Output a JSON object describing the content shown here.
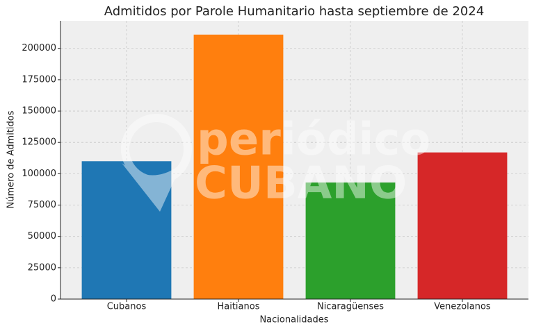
{
  "chart_data": {
    "type": "bar",
    "title": "Admitidos por Parole Humanitario hasta septiembre de 2024",
    "x_label": "Nacionalidades",
    "y_label": "Número de Admitidos",
    "categories": [
      "Cubanos",
      "Haitianos",
      "Nicaragüenses",
      "Venezolanos"
    ],
    "values": [
      110000,
      211000,
      93000,
      117000
    ],
    "colors": [
      "#1f77b4",
      "#ff7f0e",
      "#2ca02c",
      "#d62728"
    ],
    "ylim": [
      0,
      222000
    ],
    "yticks": [
      0,
      25000,
      50000,
      75000,
      100000,
      125000,
      150000,
      175000,
      200000
    ],
    "grid": true,
    "watermark": [
      "periódico",
      "CUBANO"
    ]
  }
}
